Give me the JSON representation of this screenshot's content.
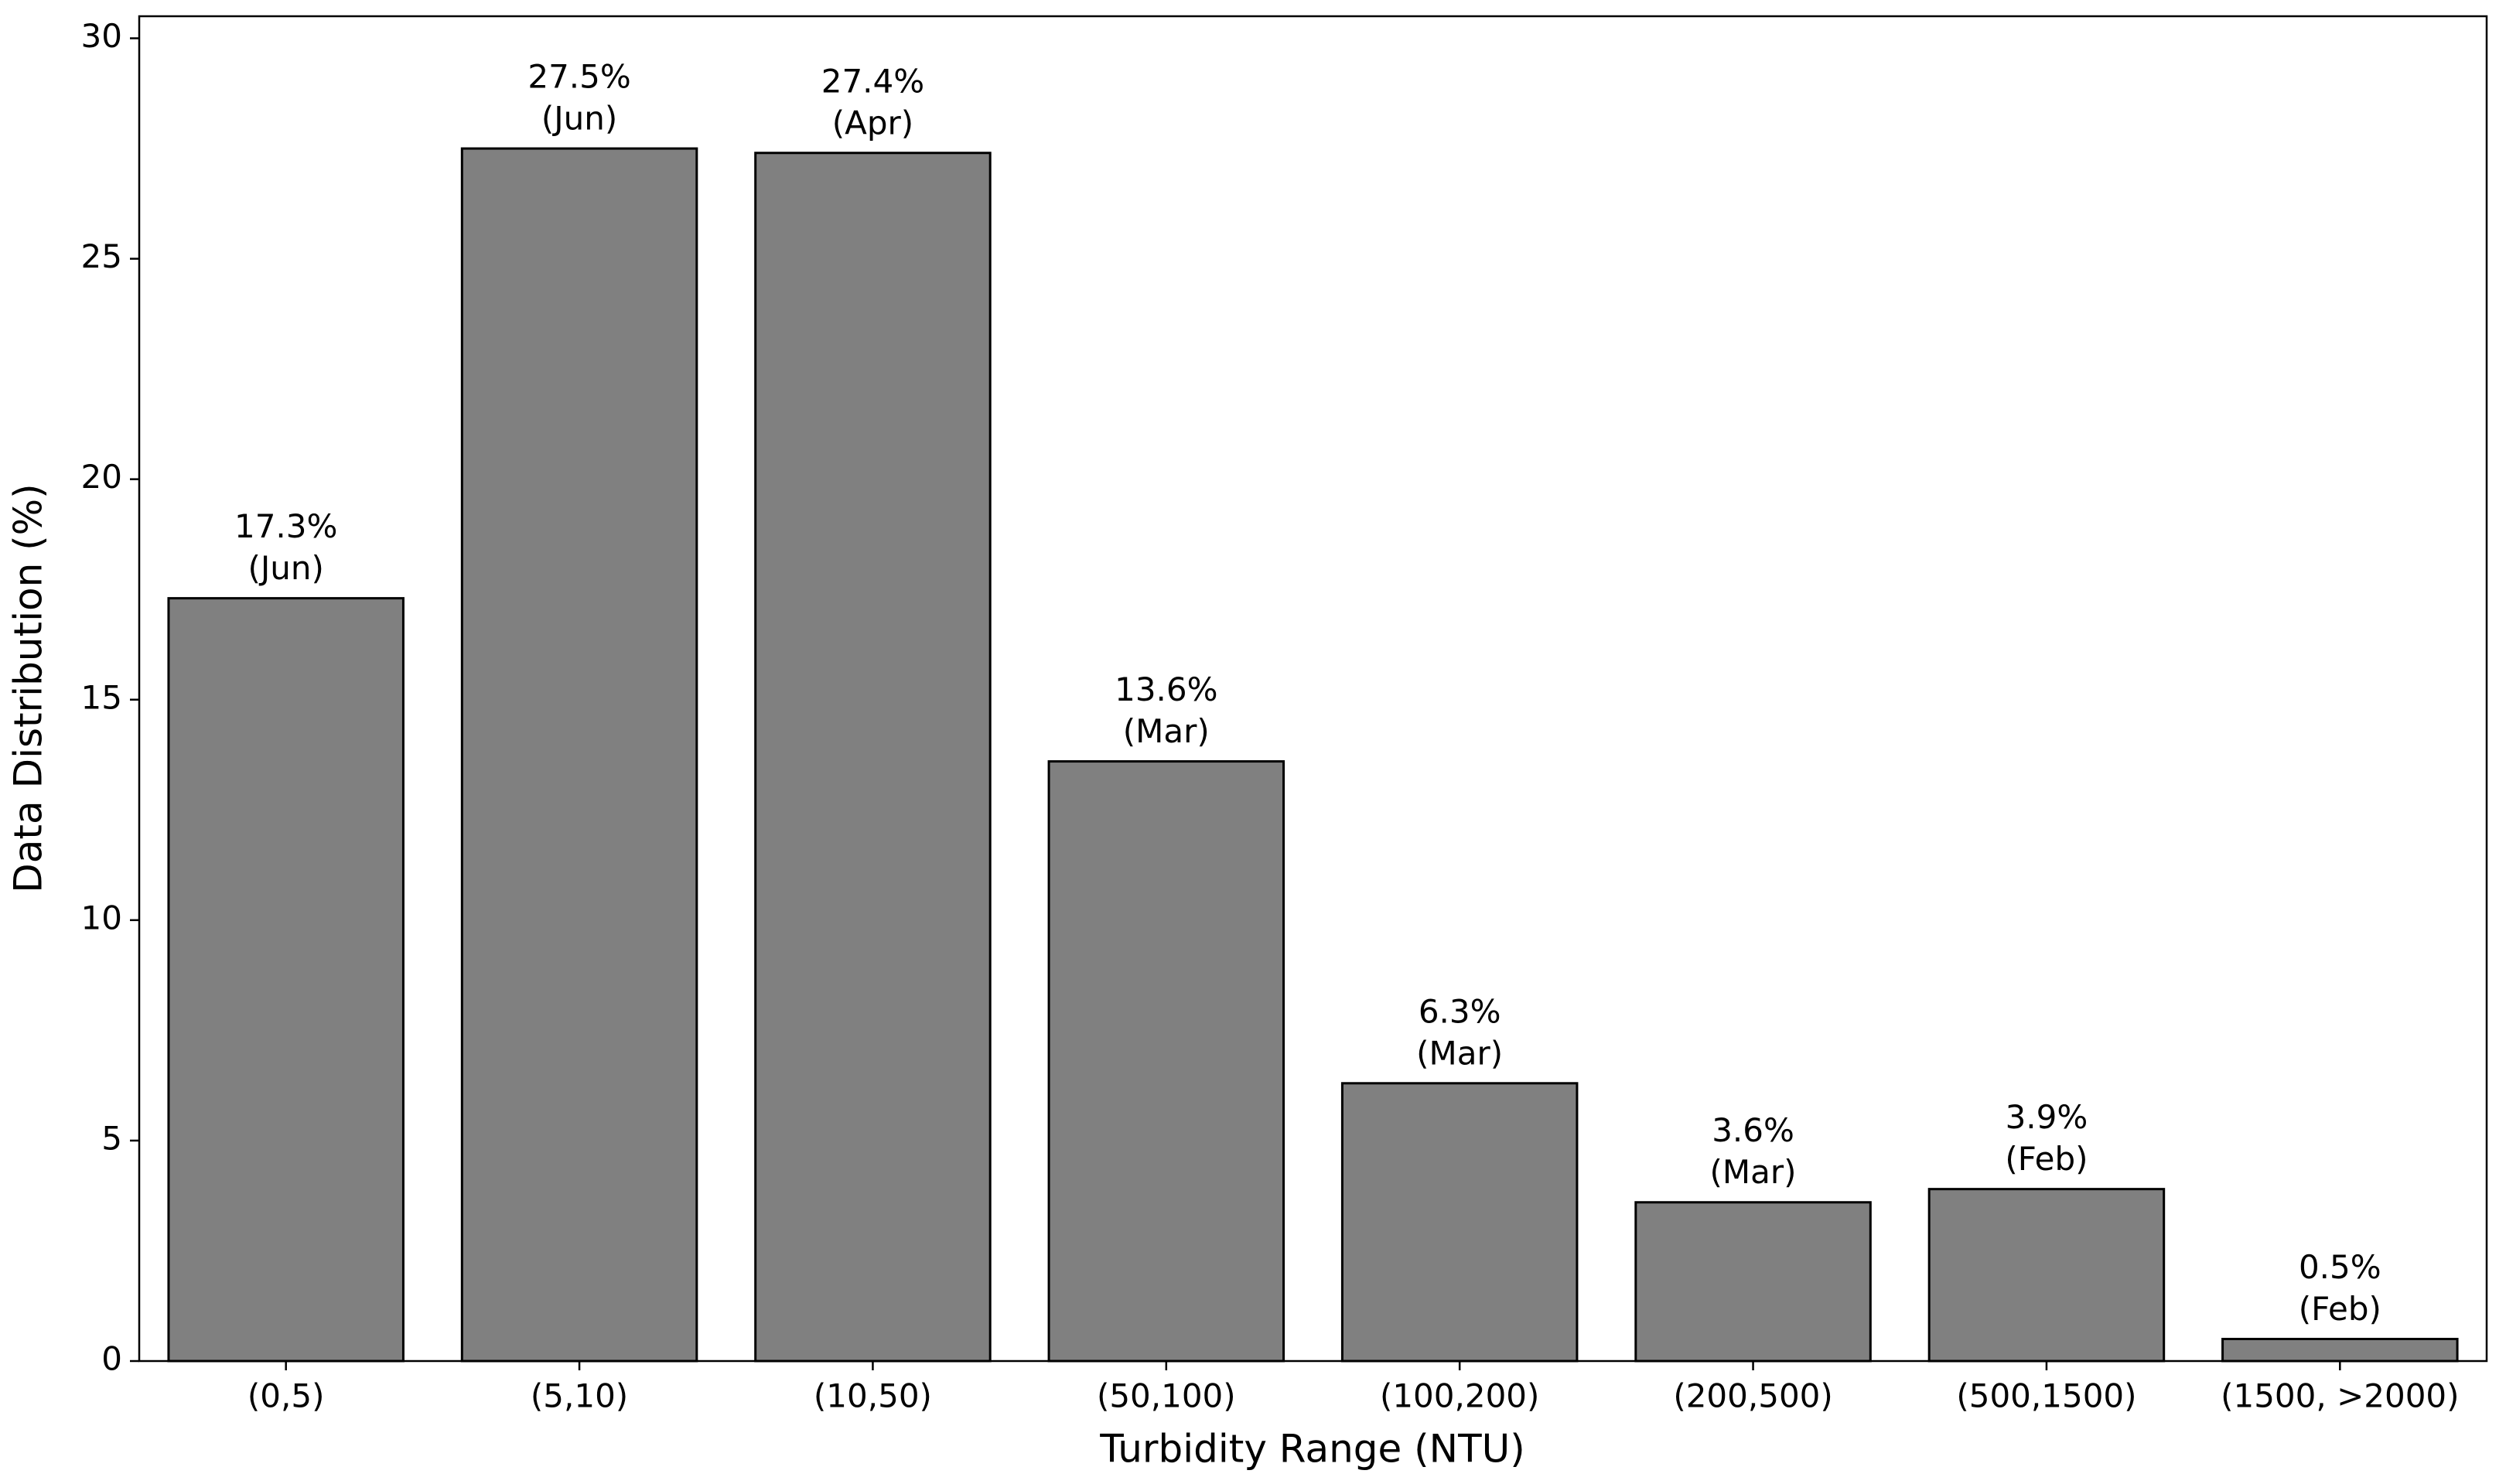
{
  "chart_data": {
    "type": "bar",
    "x_label": "Turbidity Range (NTU)",
    "y_label": "Data Distribution (%)",
    "categories": [
      "(0,5)",
      "(5,10)",
      "(10,50)",
      "(50,100)",
      "(100,200)",
      "(200,500)",
      "(500,1500)",
      "(1500, >2000)"
    ],
    "values": [
      17.3,
      27.5,
      27.4,
      13.6,
      6.3,
      3.6,
      3.9,
      0.5
    ],
    "value_labels": [
      "17.3%",
      "27.5%",
      "27.4%",
      "13.6%",
      "6.3%",
      "3.6%",
      "3.9%",
      "0.5%"
    ],
    "annotations": [
      "(Jun)",
      "(Jun)",
      "(Apr)",
      "(Mar)",
      "(Mar)",
      "(Mar)",
      "(Feb)",
      "(Feb)"
    ],
    "color": "#808080",
    "ylim": [
      0,
      30.5
    ],
    "yticks": [
      0,
      5,
      10,
      15,
      20,
      25,
      30
    ],
    "grid": false
  }
}
